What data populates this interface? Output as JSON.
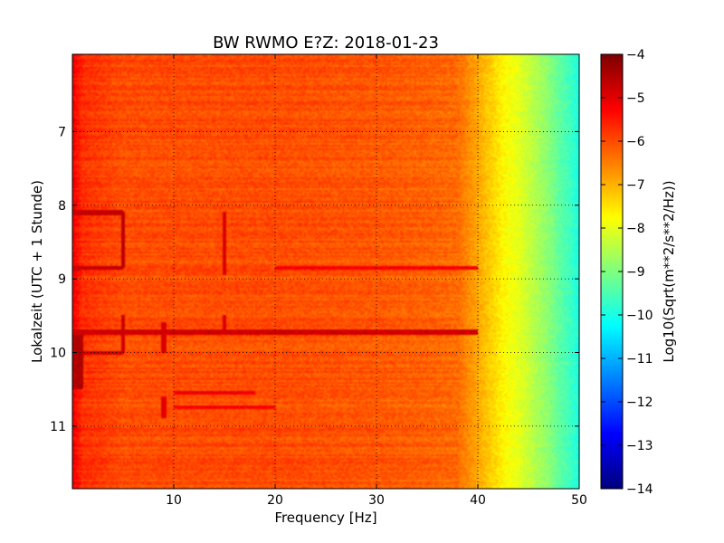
{
  "chart_data": {
    "type": "heatmap",
    "title": "BW RWMO E?Z: 2018-01-23",
    "xlabel": "Frequency [Hz]",
    "ylabel": "Lokalzeit (UTC + 1 Stunde)",
    "xlim": [
      0,
      50
    ],
    "ylim": [
      5.95,
      11.85
    ],
    "y_inverted": true,
    "x_ticks": [
      10,
      20,
      30,
      40,
      50
    ],
    "x_tick_labels": [
      "10",
      "20",
      "30",
      "40",
      "50"
    ],
    "y_ticks": [
      7,
      8,
      9,
      10,
      11
    ],
    "y_tick_labels": [
      "7",
      "8",
      "9",
      "10",
      "11"
    ],
    "grid": true,
    "colormap": "jet",
    "colorbar": {
      "label": "Log10(Sqrt(m**2/s**2/Hz))",
      "range": [
        -14,
        -4
      ],
      "ticks": [
        -4,
        -5,
        -6,
        -7,
        -8,
        -9,
        -10,
        -11,
        -12,
        -13,
        -14
      ],
      "tick_labels": [
        "−4",
        "−5",
        "−6",
        "−7",
        "−8",
        "−9",
        "−10",
        "−11",
        "−12",
        "−13",
        "−14"
      ]
    },
    "frequency_profile": {
      "frequency_hz": [
        0,
        0.5,
        1,
        5,
        10,
        20,
        30,
        35,
        38,
        39,
        40,
        41,
        42,
        43,
        44,
        45,
        46,
        47,
        48,
        49,
        50
      ],
      "value": [
        -5.1,
        -5.4,
        -5.7,
        -6.0,
        -6.0,
        -6.0,
        -6.1,
        -6.2,
        -6.3,
        -6.6,
        -6.9,
        -7.2,
        -7.5,
        -7.8,
        -8.0,
        -8.3,
        -8.6,
        -8.9,
        -9.3,
        -9.6,
        -10.0
      ]
    },
    "features": [
      {
        "kind": "vertical",
        "freq": 5.0,
        "t0": 8.1,
        "t1": 8.85,
        "value": -4.6
      },
      {
        "kind": "vertical",
        "freq": 5.0,
        "t0": 9.5,
        "t1": 10.0,
        "value": -4.8
      },
      {
        "kind": "vertical",
        "freq": 9.0,
        "t0": 9.6,
        "t1": 10.0,
        "value": -4.9
      },
      {
        "kind": "vertical",
        "freq": 15.0,
        "t0": 8.1,
        "t1": 8.95,
        "value": -4.9
      },
      {
        "kind": "vertical",
        "freq": 15.0,
        "t0": 9.5,
        "t1": 9.75,
        "value": -4.9
      },
      {
        "kind": "vertical",
        "freq": 9.0,
        "t0": 10.6,
        "t1": 10.9,
        "value": -5.0
      },
      {
        "kind": "horizontal",
        "f0": 0,
        "f1": 5,
        "time": 8.1,
        "value": -4.7
      },
      {
        "kind": "horizontal",
        "f0": 0,
        "f1": 5,
        "time": 8.85,
        "value": -4.7
      },
      {
        "kind": "horizontal",
        "f0": 0,
        "f1": 40,
        "time": 9.72,
        "value": -4.8
      },
      {
        "kind": "horizontal",
        "f0": 20,
        "f1": 40,
        "time": 8.85,
        "value": -5.2
      },
      {
        "kind": "horizontal",
        "f0": 0,
        "f1": 5,
        "time": 10.0,
        "value": -4.8
      },
      {
        "kind": "horizontal",
        "f0": 10,
        "f1": 18,
        "time": 10.55,
        "value": -5.1
      },
      {
        "kind": "horizontal",
        "f0": 10,
        "f1": 20,
        "time": 10.75,
        "value": -5.2
      },
      {
        "kind": "patch",
        "f0": 0,
        "f1": 1.0,
        "t0": 9.75,
        "t1": 10.5,
        "value": -4.5
      }
    ]
  }
}
